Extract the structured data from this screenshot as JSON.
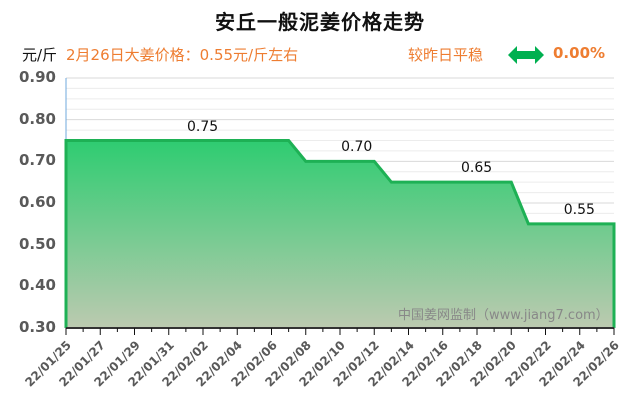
{
  "title": "安丘一般泥姜价格走势",
  "unit": "元/斤",
  "headline": "2月26日大姜价格：0.55元/斤左右",
  "compare_text": "较昨日平稳",
  "change_icon": "double-arrow-icon",
  "change_value": "0.00%",
  "watermark": "中国姜网监制（www.jiang7.com）",
  "colors": {
    "accent": "#ee7d31",
    "line": "#1eb155",
    "fill_top": "#2ecc71",
    "fill_bottom": "#bccab0",
    "arrow": "#00b050"
  },
  "chart_data": {
    "type": "area",
    "title": "安丘一般泥姜价格走势",
    "xlabel": "",
    "ylabel": "元/斤",
    "ylim": [
      0.3,
      0.9
    ],
    "yticks": [
      "0.90",
      "0.80",
      "0.70",
      "0.60",
      "0.50",
      "0.40",
      "0.30"
    ],
    "xticks": [
      "22/01/25",
      "22/01/27",
      "22/01/29",
      "22/01/31",
      "22/02/02",
      "22/02/04",
      "22/02/06",
      "22/02/08",
      "22/02/10",
      "22/02/12",
      "22/02/14",
      "22/02/16",
      "22/02/18",
      "22/02/20",
      "22/02/22",
      "22/02/24",
      "22/02/26"
    ],
    "grid": true,
    "x": [
      "22/01/25",
      "22/02/07",
      "22/02/08",
      "22/02/12",
      "22/02/13",
      "22/02/20",
      "22/02/21",
      "22/02/26"
    ],
    "values": [
      0.75,
      0.75,
      0.7,
      0.7,
      0.65,
      0.65,
      0.55,
      0.55
    ],
    "data_labels": [
      {
        "text": "0.75",
        "x": "22/02/02"
      },
      {
        "text": "0.70",
        "x": "22/02/11"
      },
      {
        "text": "0.65",
        "x": "22/02/18"
      },
      {
        "text": "0.55",
        "x": "22/02/24"
      }
    ]
  }
}
